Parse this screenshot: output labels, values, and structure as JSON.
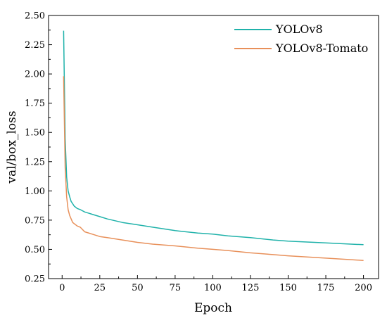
{
  "chart_data": {
    "type": "line",
    "xlabel": "Epoch",
    "ylabel": "val/box_loss",
    "xlim": [
      -9,
      210
    ],
    "ylim": [
      0.25,
      2.5
    ],
    "xticks": [
      0,
      25,
      50,
      75,
      100,
      125,
      150,
      175,
      200
    ],
    "yticks": [
      0.25,
      0.5,
      0.75,
      1.0,
      1.25,
      1.5,
      1.75,
      2.0,
      2.25,
      2.5
    ],
    "ytick_labels": [
      "0.25",
      "0.50",
      "0.75",
      "1.00",
      "1.25",
      "1.50",
      "1.75",
      "2.00",
      "2.25",
      "2.50"
    ],
    "xtick_labels": [
      "0",
      "25",
      "50",
      "75",
      "100",
      "125",
      "150",
      "175",
      "200"
    ],
    "grid": false,
    "legend_position": "top-right",
    "series": [
      {
        "name": "YOLOv8",
        "color": "#20b2aa",
        "x": [
          1,
          2,
          3,
          4,
          5,
          6,
          7,
          8,
          10,
          12,
          15,
          20,
          25,
          30,
          40,
          50,
          60,
          75,
          90,
          100,
          110,
          125,
          140,
          150,
          175,
          200
        ],
        "y": [
          2.37,
          1.45,
          1.12,
          1.0,
          0.95,
          0.91,
          0.89,
          0.87,
          0.85,
          0.84,
          0.82,
          0.8,
          0.78,
          0.76,
          0.73,
          0.71,
          0.69,
          0.66,
          0.64,
          0.63,
          0.615,
          0.6,
          0.58,
          0.57,
          0.555,
          0.54
        ]
      },
      {
        "name": "YOLOv8-Tomato",
        "color": "#e8905a",
        "x": [
          1,
          2,
          3,
          4,
          5,
          6,
          7,
          8,
          10,
          12,
          15,
          20,
          25,
          30,
          40,
          50,
          60,
          75,
          90,
          100,
          110,
          125,
          140,
          150,
          175,
          200
        ],
        "y": [
          1.98,
          1.2,
          0.95,
          0.84,
          0.79,
          0.76,
          0.73,
          0.72,
          0.7,
          0.69,
          0.65,
          0.63,
          0.61,
          0.6,
          0.58,
          0.56,
          0.545,
          0.53,
          0.51,
          0.5,
          0.49,
          0.47,
          0.455,
          0.445,
          0.425,
          0.405
        ]
      }
    ]
  }
}
